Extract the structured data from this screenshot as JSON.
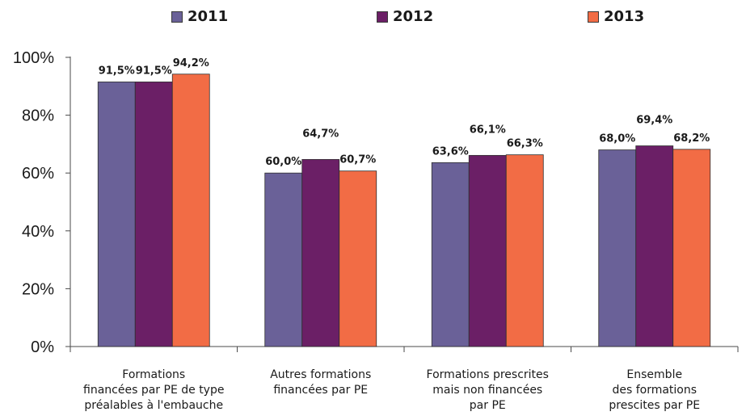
{
  "legend": [
    {
      "label": "2011",
      "color": "#6a6198"
    },
    {
      "label": "2012",
      "color": "#6b1f66"
    },
    {
      "label": "2013",
      "color": "#f26c45"
    }
  ],
  "chart_data": {
    "type": "bar",
    "categories": [
      [
        "Formations",
        "financées par PE de type",
        "préalables à l'embauche"
      ],
      [
        "Autres formations",
        "financées par PE"
      ],
      [
        "Formations prescrites",
        "mais non financées",
        "par PE"
      ],
      [
        "Ensemble",
        "des formations",
        "prescites par PE"
      ]
    ],
    "series": [
      {
        "name": "2011",
        "values": [
          91.5,
          60.0,
          63.6,
          68.0
        ],
        "labels": [
          "91,5%",
          "60,0%",
          "63,6%",
          "68,0%"
        ],
        "color": "#6a6198"
      },
      {
        "name": "2012",
        "values": [
          91.5,
          64.7,
          66.1,
          69.4
        ],
        "labels": [
          "91,5%",
          "64,7%",
          "66,1%",
          "69,4%"
        ],
        "color": "#6b1f66"
      },
      {
        "name": "2013",
        "values": [
          94.2,
          60.7,
          66.3,
          68.2
        ],
        "labels": [
          "94,2%",
          "60,7%",
          "66,3%",
          "68,2%"
        ],
        "color": "#f26c45"
      }
    ],
    "yticks": [
      "0%",
      "20%",
      "40%",
      "60%",
      "80%",
      "100%"
    ],
    "ylim": [
      0,
      100
    ],
    "grid": false,
    "legend_position": "top"
  }
}
